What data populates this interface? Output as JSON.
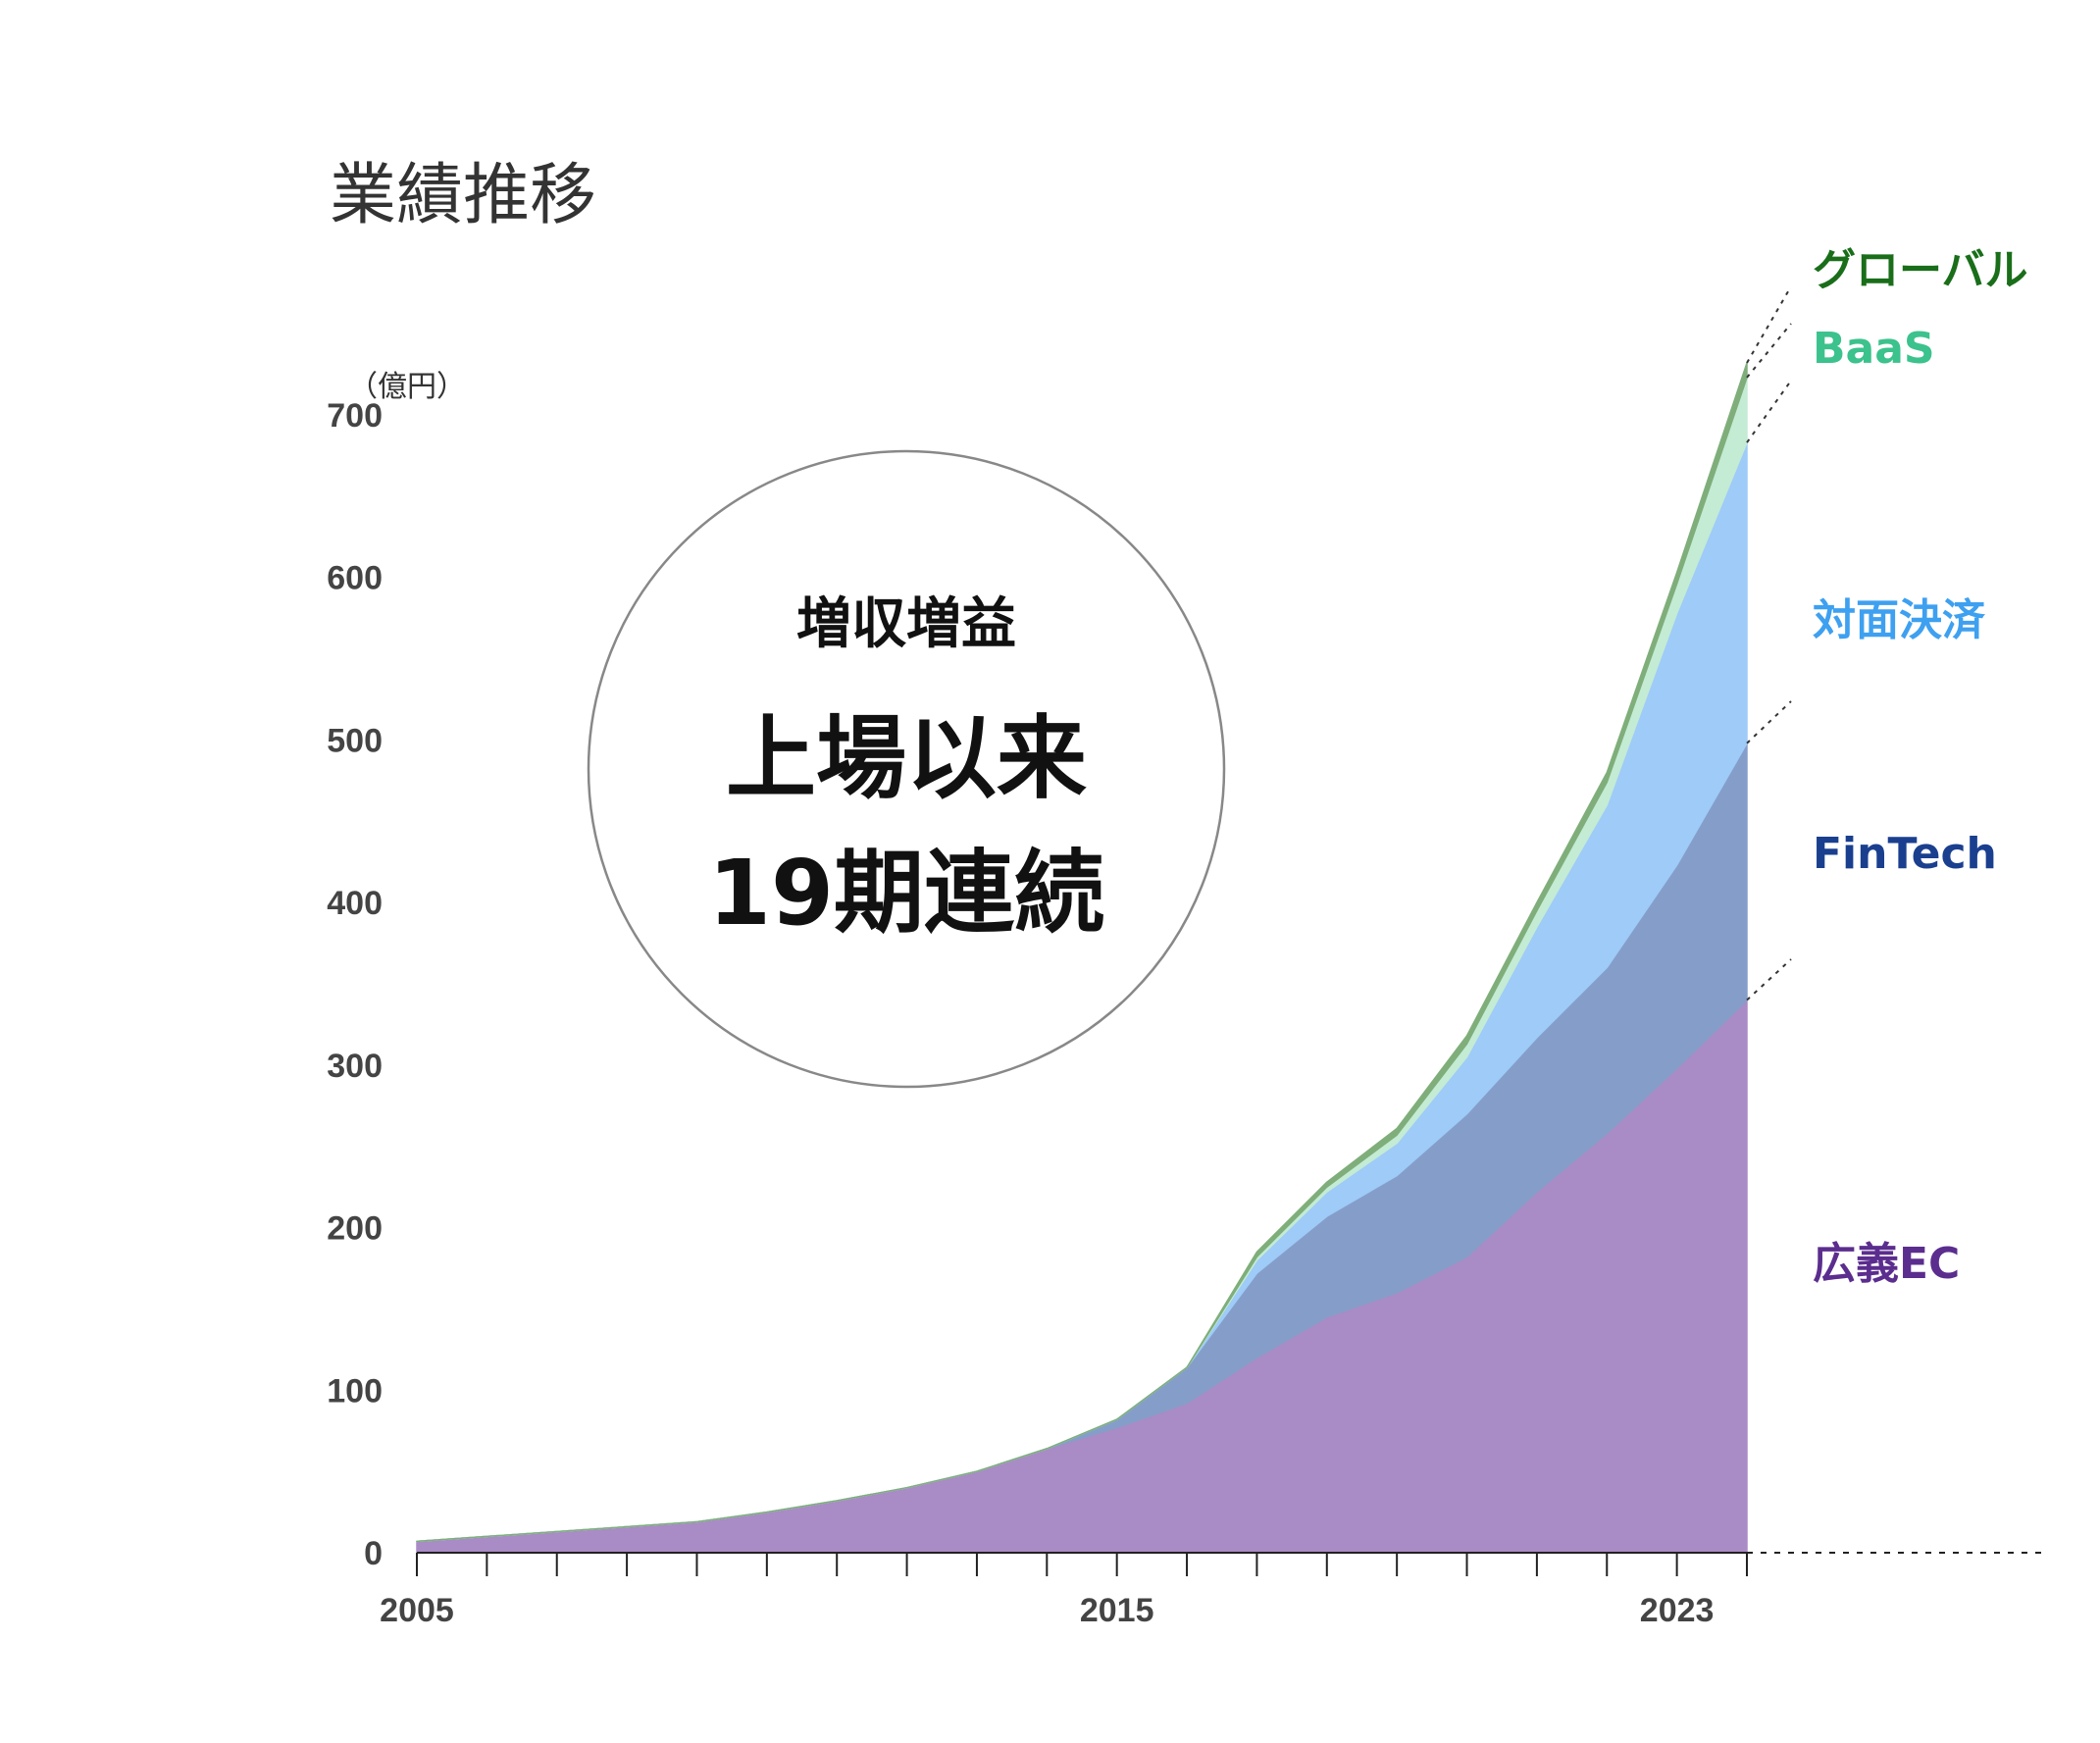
{
  "chart_data": {
    "type": "area",
    "stacked": true,
    "title": "業績推移",
    "unit_label": "（億円）",
    "x": [
      2005,
      2006,
      2007,
      2008,
      2009,
      2010,
      2011,
      2012,
      2013,
      2014,
      2015,
      2016,
      2017,
      2018,
      2019,
      2020,
      2021,
      2022,
      2023,
      2024
    ],
    "x_ticks": [
      2005,
      2015,
      2023
    ],
    "y_ticks": [
      0,
      100,
      200,
      300,
      400,
      500,
      600,
      700
    ],
    "ylim": [
      0,
      700
    ],
    "grid": false,
    "badge": {
      "line1": "増収増益",
      "line2": "上場以来",
      "line3": "19期連続"
    },
    "series": [
      {
        "name": "広義EC",
        "color": "#a98bc5",
        "label_color": "#5b2d8e",
        "values": [
          7,
          10,
          13,
          16,
          19,
          25,
          32,
          40,
          50,
          64,
          77,
          92,
          120,
          145,
          160,
          182,
          222,
          258,
          298,
          340
        ]
      },
      {
        "name": "FinTech",
        "color": "#859ec9",
        "label_color": "#1a3f8f",
        "values": [
          0,
          0,
          0,
          0,
          0,
          0,
          0,
          0,
          0,
          0,
          5,
          22,
          52,
          62,
          72,
          88,
          95,
          102,
          125,
          158
        ]
      },
      {
        "name": "対面決済",
        "color": "#9ecbf8",
        "label_color": "#3ea0f0",
        "values": [
          0,
          0,
          0,
          0,
          0,
          0,
          0,
          0,
          0,
          0,
          0,
          0,
          8,
          15,
          20,
          35,
          68,
          100,
          155,
          185
        ]
      },
      {
        "name": "BaaS",
        "color": "#c4ebd4",
        "label_color": "#3cc28c",
        "values": [
          0,
          0,
          0,
          0,
          0,
          0,
          0,
          0,
          0,
          0,
          0,
          0,
          2,
          3,
          5,
          8,
          10,
          14,
          18,
          40
        ]
      },
      {
        "name": "グローバル",
        "color": "#7fae7a",
        "label_color": "#1a6e1a",
        "values": [
          0,
          0,
          0,
          0,
          0,
          0,
          0,
          0,
          0,
          0,
          0,
          0,
          3,
          3,
          4,
          5,
          5,
          6,
          7,
          9
        ]
      }
    ]
  }
}
